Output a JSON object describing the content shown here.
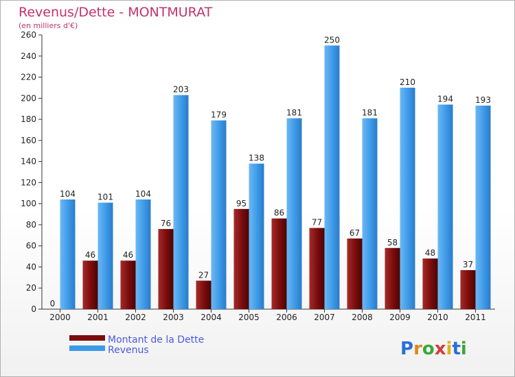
{
  "chart_data": {
    "type": "bar",
    "title": "Revenus/Dette - MONTMURAT",
    "subtitle": "(en milliers d'€)",
    "categories": [
      "2000",
      "2001",
      "2002",
      "2003",
      "2004",
      "2005",
      "2006",
      "2007",
      "2008",
      "2009",
      "2010",
      "2011"
    ],
    "series": [
      {
        "name": "Montant de la Dette",
        "color": "#7a0c0c",
        "values": [
          0,
          46,
          46,
          76,
          27,
          95,
          86,
          77,
          67,
          58,
          48,
          37
        ]
      },
      {
        "name": "Revenus",
        "color": "#3d9ae8",
        "values": [
          104,
          101,
          104,
          203,
          179,
          138,
          181,
          250,
          181,
          210,
          194,
          193
        ]
      }
    ],
    "ylim": [
      0,
      260
    ],
    "yticks": [
      0,
      20,
      40,
      60,
      80,
      100,
      120,
      140,
      160,
      180,
      200,
      220,
      240,
      260
    ],
    "grid": false,
    "legend": "bottom-left"
  },
  "brand": {
    "letters": [
      "P",
      "r",
      "o",
      "x",
      "i",
      "t",
      "i"
    ],
    "colors": [
      "#2a6fd6",
      "#e0881a",
      "#3aa83a",
      "#d43a3a",
      "#e0b01a",
      "#2a6fd6",
      "#3aa83a"
    ]
  }
}
